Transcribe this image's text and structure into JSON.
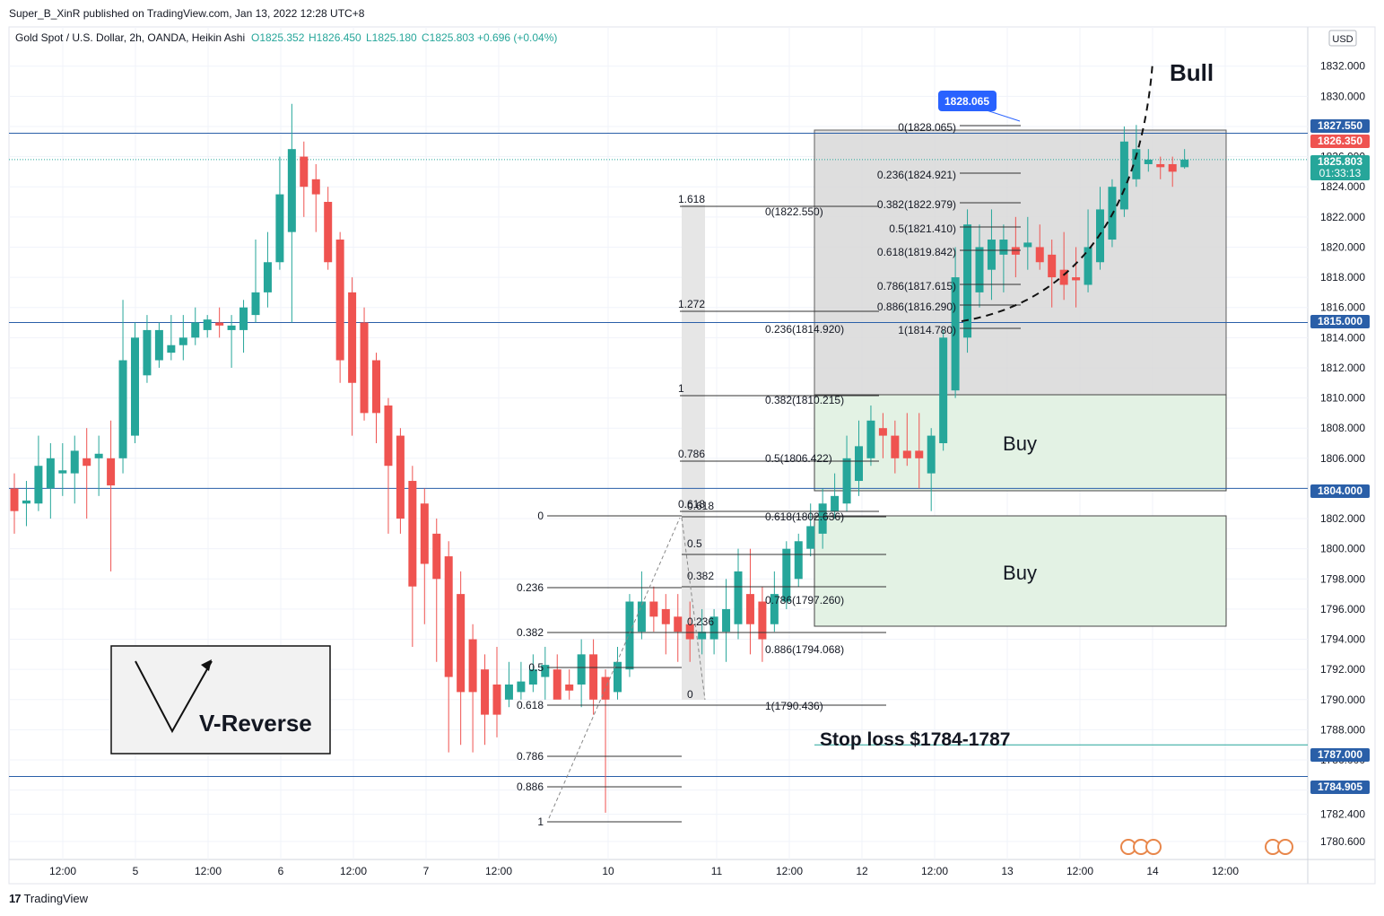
{
  "header": {
    "publisher": "Super_B_XinR published on TradingView.com, Jan 13, 2022 12:28 UTC+8"
  },
  "legend": {
    "symbol": "Gold Spot / U.S. Dollar, 2h, OANDA, Heikin Ashi",
    "o": "O1825.352",
    "h": "H1826.450",
    "l": "L1825.180",
    "c": "C1825.803",
    "chg": "+0.696 (+0.04%)"
  },
  "currency": "USD",
  "footer": {
    "logo": "17",
    "brand": "TradingView"
  },
  "colors": {
    "up": "#26a69a",
    "down": "#ef5350",
    "line": "#2a5fa8",
    "zoneGray": "#d9d9d9",
    "zoneGreen": "#e3f2e4",
    "label": "#2a5fa8"
  },
  "chart_data": {
    "type": "candlestick",
    "ylim": [
      1779.4,
      1834.6
    ],
    "x_ticks": [
      "12:00",
      "5",
      "12:00",
      "6",
      "12:00",
      "7",
      "12:00",
      "10",
      "11",
      "12:00",
      "12",
      "12:00",
      "13",
      "12:00",
      "14",
      "12:00"
    ],
    "y_ticks": [
      "1832.000",
      "1830.000",
      "1828.000",
      "1826.000",
      "1824.000",
      "1822.000",
      "1820.000",
      "1818.000",
      "1816.000",
      "1814.000",
      "1812.000",
      "1810.000",
      "1808.000",
      "1806.000",
      "1804.000",
      "1802.000",
      "1800.000",
      "1798.000",
      "1796.000",
      "1794.000",
      "1792.000",
      "1790.000",
      "1788.000",
      "1786.000",
      "1784.000",
      "1782.400",
      "1780.600"
    ],
    "candles": [
      {
        "o": 1804.0,
        "h": 1805.0,
        "l": 1801.0,
        "c": 1802.5
      },
      {
        "o": 1803.0,
        "h": 1804.5,
        "l": 1801.5,
        "c": 1803.2
      },
      {
        "o": 1803.0,
        "h": 1807.5,
        "l": 1802.5,
        "c": 1805.5
      },
      {
        "o": 1804.0,
        "h": 1807.0,
        "l": 1802.0,
        "c": 1806.0
      },
      {
        "o": 1805.0,
        "h": 1807.0,
        "l": 1803.5,
        "c": 1805.2
      },
      {
        "o": 1805.0,
        "h": 1807.5,
        "l": 1803.0,
        "c": 1806.5
      },
      {
        "o": 1806.0,
        "h": 1808.0,
        "l": 1802.0,
        "c": 1805.5
      },
      {
        "o": 1806.0,
        "h": 1807.5,
        "l": 1803.5,
        "c": 1806.3
      },
      {
        "o": 1806.0,
        "h": 1808.5,
        "l": 1798.5,
        "c": 1804.2
      },
      {
        "o": 1806.0,
        "h": 1816.5,
        "l": 1805.0,
        "c": 1812.5
      },
      {
        "o": 1807.5,
        "h": 1815.0,
        "l": 1807.0,
        "c": 1814.0
      },
      {
        "o": 1811.5,
        "h": 1815.5,
        "l": 1811.0,
        "c": 1814.5
      },
      {
        "o": 1812.5,
        "h": 1815.0,
        "l": 1812.0,
        "c": 1814.5
      },
      {
        "o": 1813.0,
        "h": 1815.5,
        "l": 1812.5,
        "c": 1813.5
      },
      {
        "o": 1813.5,
        "h": 1815.5,
        "l": 1812.5,
        "c": 1814.0
      },
      {
        "o": 1814.0,
        "h": 1816.0,
        "l": 1813.5,
        "c": 1815.0
      },
      {
        "o": 1814.5,
        "h": 1815.5,
        "l": 1814.0,
        "c": 1815.2
      },
      {
        "o": 1815.0,
        "h": 1816.0,
        "l": 1814.0,
        "c": 1814.8
      },
      {
        "o": 1814.5,
        "h": 1815.5,
        "l": 1812.0,
        "c": 1814.8
      },
      {
        "o": 1814.5,
        "h": 1816.5,
        "l": 1813.0,
        "c": 1816.0
      },
      {
        "o": 1815.5,
        "h": 1820.5,
        "l": 1815.0,
        "c": 1817.0
      },
      {
        "o": 1817.0,
        "h": 1821.0,
        "l": 1816.0,
        "c": 1819.0
      },
      {
        "o": 1819.0,
        "h": 1826.0,
        "l": 1818.5,
        "c": 1823.5
      },
      {
        "o": 1821.0,
        "h": 1829.5,
        "l": 1815.0,
        "c": 1826.5
      },
      {
        "o": 1826.0,
        "h": 1827.0,
        "l": 1822.0,
        "c": 1824.0
      },
      {
        "o": 1824.5,
        "h": 1825.5,
        "l": 1821.0,
        "c": 1823.5
      },
      {
        "o": 1823.0,
        "h": 1824.0,
        "l": 1818.5,
        "c": 1819.0
      },
      {
        "o": 1820.5,
        "h": 1821.0,
        "l": 1811.0,
        "c": 1812.5
      },
      {
        "o": 1817.0,
        "h": 1818.0,
        "l": 1807.5,
        "c": 1811.0
      },
      {
        "o": 1815.0,
        "h": 1816.0,
        "l": 1808.5,
        "c": 1809.0
      },
      {
        "o": 1812.5,
        "h": 1813.0,
        "l": 1807.0,
        "c": 1809.0
      },
      {
        "o": 1809.5,
        "h": 1810.0,
        "l": 1801.0,
        "c": 1805.5
      },
      {
        "o": 1807.5,
        "h": 1808.0,
        "l": 1801.0,
        "c": 1802.0
      },
      {
        "o": 1804.5,
        "h": 1805.5,
        "l": 1793.5,
        "c": 1797.5
      },
      {
        "o": 1803.0,
        "h": 1804.0,
        "l": 1795.0,
        "c": 1799.0
      },
      {
        "o": 1801.0,
        "h": 1802.0,
        "l": 1792.5,
        "c": 1798.0
      },
      {
        "o": 1799.5,
        "h": 1800.5,
        "l": 1786.5,
        "c": 1791.5
      },
      {
        "o": 1797.0,
        "h": 1798.5,
        "l": 1787.0,
        "c": 1790.5
      },
      {
        "o": 1794.0,
        "h": 1795.0,
        "l": 1786.5,
        "c": 1790.5
      },
      {
        "o": 1792.0,
        "h": 1793.0,
        "l": 1787.0,
        "c": 1789.0
      },
      {
        "o": 1791.0,
        "h": 1793.5,
        "l": 1787.5,
        "c": 1789.0
      },
      {
        "o": 1790.0,
        "h": 1792.5,
        "l": 1789.5,
        "c": 1791.0
      },
      {
        "o": 1790.5,
        "h": 1792.5,
        "l": 1790.0,
        "c": 1791.2
      },
      {
        "o": 1791.0,
        "h": 1793.0,
        "l": 1790.5,
        "c": 1792.0
      },
      {
        "o": 1791.5,
        "h": 1793.5,
        "l": 1790.0,
        "c": 1792.3
      },
      {
        "o": 1792.0,
        "h": 1793.0,
        "l": 1790.5,
        "c": 1790.0
      },
      {
        "o": 1791.0,
        "h": 1792.0,
        "l": 1790.0,
        "c": 1790.6
      },
      {
        "o": 1791.0,
        "h": 1794.0,
        "l": 1789.5,
        "c": 1793.0
      },
      {
        "o": 1793.0,
        "h": 1794.0,
        "l": 1789.0,
        "c": 1790.0
      },
      {
        "o": 1791.5,
        "h": 1792.0,
        "l": 1782.5,
        "c": 1790.0
      },
      {
        "o": 1790.5,
        "h": 1793.5,
        "l": 1790.0,
        "c": 1792.5
      },
      {
        "o": 1792.0,
        "h": 1797.0,
        "l": 1791.5,
        "c": 1796.5
      },
      {
        "o": 1794.5,
        "h": 1798.5,
        "l": 1794.0,
        "c": 1796.5
      },
      {
        "o": 1796.5,
        "h": 1797.5,
        "l": 1794.5,
        "c": 1795.5
      },
      {
        "o": 1796.0,
        "h": 1797.0,
        "l": 1793.0,
        "c": 1795.0
      },
      {
        "o": 1795.5,
        "h": 1797.0,
        "l": 1792.5,
        "c": 1794.5
      },
      {
        "o": 1795.0,
        "h": 1796.5,
        "l": 1792.5,
        "c": 1794.0
      },
      {
        "o": 1794.0,
        "h": 1796.0,
        "l": 1793.0,
        "c": 1794.5
      },
      {
        "o": 1794.0,
        "h": 1796.0,
        "l": 1793.0,
        "c": 1795.5
      },
      {
        "o": 1794.5,
        "h": 1798.0,
        "l": 1792.5,
        "c": 1796.0
      },
      {
        "o": 1795.0,
        "h": 1800.0,
        "l": 1794.0,
        "c": 1798.5
      },
      {
        "o": 1797.0,
        "h": 1800.0,
        "l": 1793.0,
        "c": 1795.0
      },
      {
        "o": 1796.5,
        "h": 1797.5,
        "l": 1792.5,
        "c": 1794.0
      },
      {
        "o": 1795.0,
        "h": 1798.5,
        "l": 1794.5,
        "c": 1797.0
      },
      {
        "o": 1796.5,
        "h": 1800.5,
        "l": 1796.0,
        "c": 1800.0
      },
      {
        "o": 1798.0,
        "h": 1801.0,
        "l": 1797.5,
        "c": 1800.5
      },
      {
        "o": 1800.0,
        "h": 1803.0,
        "l": 1799.5,
        "c": 1801.5
      },
      {
        "o": 1801.0,
        "h": 1804.0,
        "l": 1800.0,
        "c": 1803.0
      },
      {
        "o": 1802.5,
        "h": 1805.0,
        "l": 1802.0,
        "c": 1803.5
      },
      {
        "o": 1803.0,
        "h": 1807.5,
        "l": 1802.5,
        "c": 1806.0
      },
      {
        "o": 1804.5,
        "h": 1808.5,
        "l": 1803.5,
        "c": 1806.8
      },
      {
        "o": 1806.0,
        "h": 1809.5,
        "l": 1805.5,
        "c": 1808.5
      },
      {
        "o": 1808.0,
        "h": 1809.0,
        "l": 1806.0,
        "c": 1807.5
      },
      {
        "o": 1807.5,
        "h": 1808.5,
        "l": 1805.0,
        "c": 1806.0
      },
      {
        "o": 1806.5,
        "h": 1809.0,
        "l": 1805.5,
        "c": 1806.0
      },
      {
        "o": 1806.5,
        "h": 1809.0,
        "l": 1804.0,
        "c": 1806.0
      },
      {
        "o": 1805.0,
        "h": 1808.0,
        "l": 1802.5,
        "c": 1807.5
      },
      {
        "o": 1807.0,
        "h": 1814.5,
        "l": 1806.5,
        "c": 1814.0
      },
      {
        "o": 1810.5,
        "h": 1820.0,
        "l": 1810.0,
        "c": 1818.0
      },
      {
        "o": 1814.0,
        "h": 1822.5,
        "l": 1813.0,
        "c": 1821.5
      },
      {
        "o": 1817.0,
        "h": 1821.5,
        "l": 1816.0,
        "c": 1820.0
      },
      {
        "o": 1818.5,
        "h": 1822.5,
        "l": 1816.5,
        "c": 1820.5
      },
      {
        "o": 1819.5,
        "h": 1821.5,
        "l": 1817.0,
        "c": 1820.5
      },
      {
        "o": 1820.0,
        "h": 1822.0,
        "l": 1818.0,
        "c": 1819.5
      },
      {
        "o": 1820.0,
        "h": 1822.0,
        "l": 1818.5,
        "c": 1820.3
      },
      {
        "o": 1820.0,
        "h": 1821.5,
        "l": 1818.5,
        "c": 1819.0
      },
      {
        "o": 1819.5,
        "h": 1820.5,
        "l": 1816.0,
        "c": 1818.0
      },
      {
        "o": 1818.5,
        "h": 1821.0,
        "l": 1816.5,
        "c": 1817.5
      },
      {
        "o": 1818.0,
        "h": 1820.0,
        "l": 1816.0,
        "c": 1817.8
      },
      {
        "o": 1817.5,
        "h": 1822.5,
        "l": 1817.0,
        "c": 1820.0
      },
      {
        "o": 1819.0,
        "h": 1824.0,
        "l": 1818.5,
        "c": 1822.5
      },
      {
        "o": 1820.5,
        "h": 1824.5,
        "l": 1820.0,
        "c": 1824.0
      },
      {
        "o": 1822.5,
        "h": 1828.0,
        "l": 1822.0,
        "c": 1827.0
      },
      {
        "o": 1824.5,
        "h": 1828.1,
        "l": 1824.0,
        "c": 1826.5
      },
      {
        "o": 1825.5,
        "h": 1826.5,
        "l": 1825.0,
        "c": 1825.8
      },
      {
        "o": 1825.5,
        "h": 1826.0,
        "l": 1824.5,
        "c": 1825.3
      },
      {
        "o": 1825.5,
        "h": 1826.0,
        "l": 1824.0,
        "c": 1825.0
      },
      {
        "o": 1825.3,
        "h": 1826.5,
        "l": 1825.2,
        "c": 1825.8
      }
    ]
  },
  "price_labels": [
    {
      "text": "1827.550",
      "kind": "line"
    },
    {
      "text": "1826.350",
      "kind": "red"
    },
    {
      "text": "1825.803",
      "sub": "01:33:13",
      "kind": "green"
    },
    {
      "text": "1815.000",
      "kind": "line"
    },
    {
      "text": "1804.000",
      "kind": "line"
    },
    {
      "text": "1787.000",
      "kind": "line"
    },
    {
      "text": "1784.905",
      "kind": "line"
    }
  ],
  "fib_a_levels": [
    "0",
    "0.236",
    "0.382",
    "0.5",
    "0.618",
    "0.786",
    "0.886",
    "1"
  ],
  "fib_b_levels": [
    "0.618",
    "0.5",
    "0.382",
    "0.236",
    "0"
  ],
  "fib_c_levels": [
    "1.618",
    "1.272",
    "1",
    "0.786",
    "0.618"
  ],
  "fib_d_levels": [
    "0(1822.550)",
    "0.236(1814.920)",
    "0.382(1810.215)",
    "0.5(1806.422)",
    "0.618(1802.636)",
    "0.786(1797.260)",
    "0.886(1794.068)",
    "1(1790.436)"
  ],
  "fib_e_levels": [
    "0(1828.065)",
    "0.236(1824.921)",
    "0.382(1822.979)",
    "0.5(1821.410)",
    "0.618(1819.842)",
    "0.786(1817.615)",
    "0.886(1816.290)",
    "1(1814.780)"
  ],
  "annotations": {
    "high_badge": "1828.065",
    "bull": "Bull",
    "buy1": "Buy",
    "buy2": "Buy",
    "stop_loss": "Stop loss $1784-1787",
    "v_reverse": "V-Reverse"
  }
}
